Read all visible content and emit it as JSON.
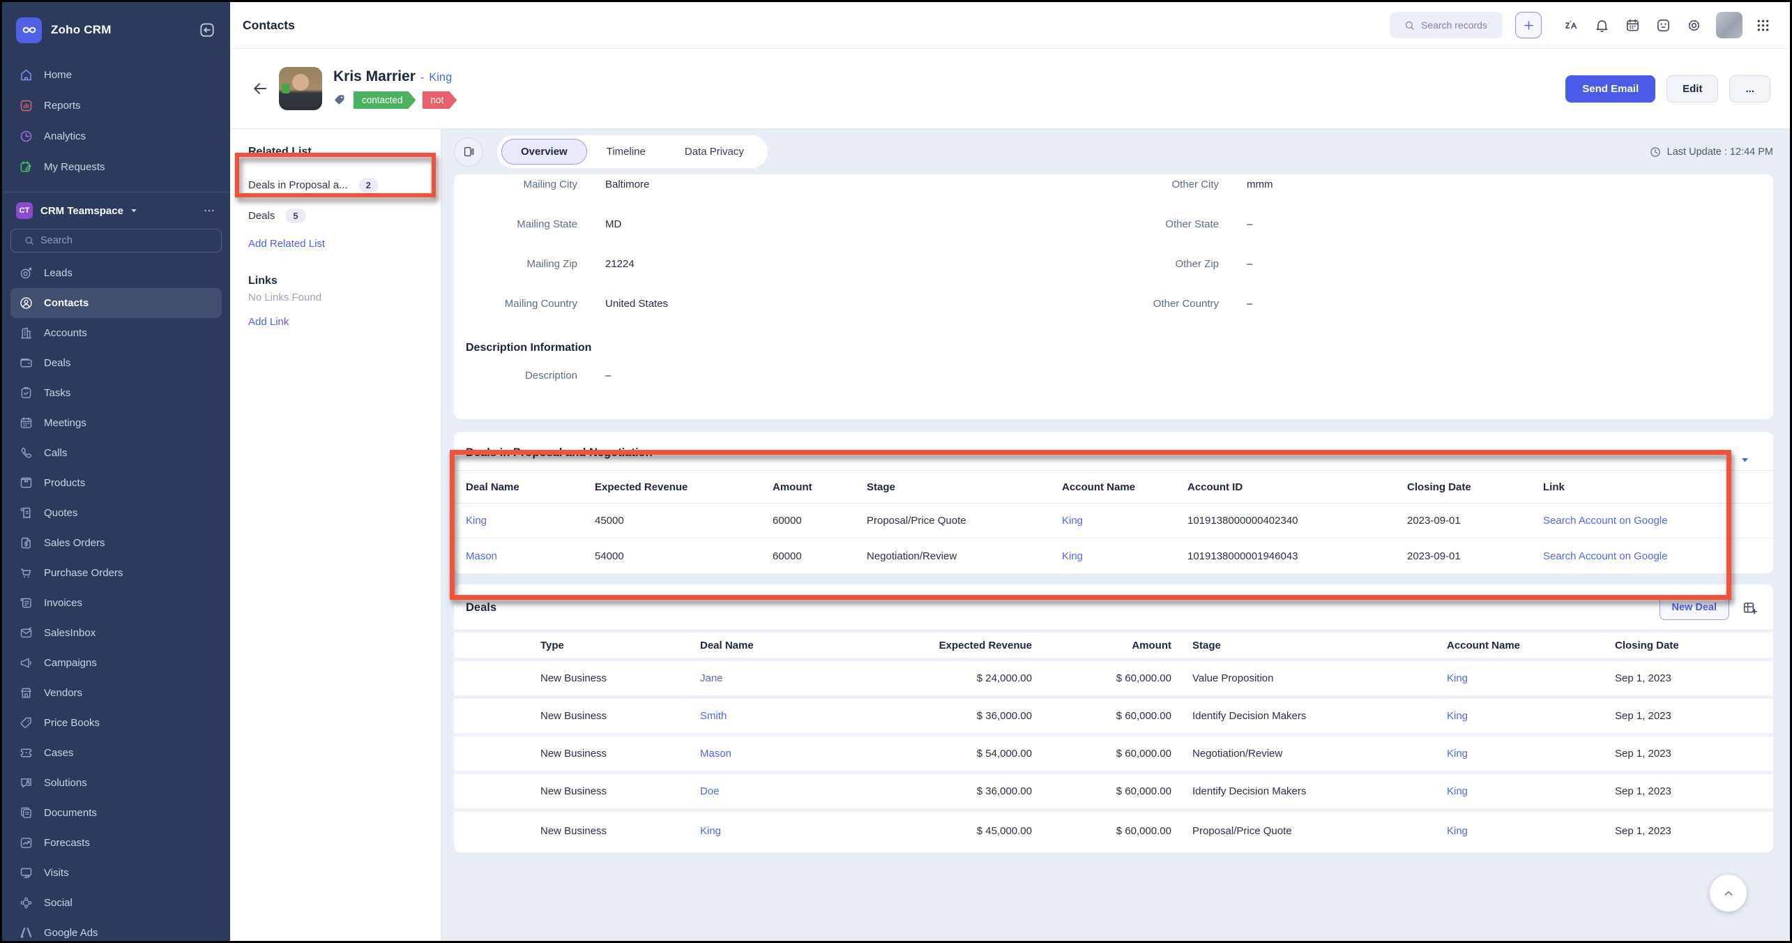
{
  "app": {
    "name": "Zoho CRM"
  },
  "colors": {
    "accent": "#4c5ae8",
    "annotation_red": "#f4513c",
    "tag_green": "#4db25f",
    "tag_red": "#e7616d",
    "sidebar_bg": "#2b3a5d",
    "link_blue": "#5065f2"
  },
  "sidebar": {
    "collapse_icon": "collapse",
    "top_items": [
      {
        "label": "Home",
        "icon": "home"
      },
      {
        "label": "Reports",
        "icon": "reports"
      },
      {
        "label": "Analytics",
        "icon": "analytics"
      },
      {
        "label": "My Requests",
        "icon": "requests"
      }
    ],
    "teamspace": {
      "initials": "CT",
      "label": "CRM Teamspace"
    },
    "search_placeholder": "Search",
    "modules": [
      {
        "label": "Leads",
        "icon": "leads"
      },
      {
        "label": "Contacts",
        "icon": "contacts",
        "selected": true
      },
      {
        "label": "Accounts",
        "icon": "accounts"
      },
      {
        "label": "Deals",
        "icon": "deals"
      },
      {
        "label": "Tasks",
        "icon": "tasks"
      },
      {
        "label": "Meetings",
        "icon": "meetings"
      },
      {
        "label": "Calls",
        "icon": "calls"
      },
      {
        "label": "Products",
        "icon": "products"
      },
      {
        "label": "Quotes",
        "icon": "quotes"
      },
      {
        "label": "Sales Orders",
        "icon": "sales-orders"
      },
      {
        "label": "Purchase Orders",
        "icon": "purchase-orders"
      },
      {
        "label": "Invoices",
        "icon": "invoices"
      },
      {
        "label": "SalesInbox",
        "icon": "salesinbox"
      },
      {
        "label": "Campaigns",
        "icon": "campaigns"
      },
      {
        "label": "Vendors",
        "icon": "vendors"
      },
      {
        "label": "Price Books",
        "icon": "price-books"
      },
      {
        "label": "Cases",
        "icon": "cases"
      },
      {
        "label": "Solutions",
        "icon": "solutions"
      },
      {
        "label": "Documents",
        "icon": "documents"
      },
      {
        "label": "Forecasts",
        "icon": "forecasts"
      },
      {
        "label": "Visits",
        "icon": "visits"
      },
      {
        "label": "Social",
        "icon": "social"
      },
      {
        "label": "Google Ads",
        "icon": "google-ads"
      }
    ]
  },
  "topbar": {
    "title": "Contacts",
    "search_placeholder": "Search records",
    "action_icons": [
      {
        "icon": "zia"
      },
      {
        "icon": "bell"
      },
      {
        "icon": "calendar"
      },
      {
        "icon": "feedback"
      },
      {
        "icon": "gear"
      }
    ]
  },
  "record": {
    "name": "Kris Marrier",
    "dash": "-",
    "account_link": "King",
    "tags": [
      {
        "label": "contacted",
        "green": true
      },
      {
        "label": "not",
        "red": true
      }
    ],
    "send_email": "Send Email",
    "edit": "Edit",
    "more": "...",
    "last_update": "Last Update : 12:44 PM"
  },
  "related_panel": {
    "related_title": "Related List",
    "items": [
      {
        "label": "Deals in Proposal a...",
        "count": "2"
      },
      {
        "label": "Deals",
        "count": "5"
      }
    ],
    "add_related": "Add Related List",
    "links_title": "Links",
    "no_links": "No Links Found",
    "add_link": "Add Link"
  },
  "tabs": [
    {
      "label": "Overview",
      "selected": true
    },
    {
      "label": "Timeline"
    },
    {
      "label": "Data Privacy"
    }
  ],
  "details": {
    "rows": [
      {
        "l_label": "Mailing City",
        "l_value": "Baltimore",
        "r_label": "Other City",
        "r_value": "mmm"
      },
      {
        "l_label": "Mailing State",
        "l_value": "MD",
        "r_label": "Other State",
        "r_value": "–"
      },
      {
        "l_label": "Mailing Zip",
        "l_value": "21224",
        "r_label": "Other Zip",
        "r_value": "–"
      },
      {
        "l_label": "Mailing Country",
        "l_value": "United States",
        "r_label": "Other Country",
        "r_value": "–"
      }
    ],
    "description_section": "Description Information",
    "description_label": "Description",
    "description_value": "–"
  },
  "proposal_table": {
    "title": "Deals in Proposal and Negotiation",
    "columns": [
      "Deal Name",
      "Expected Revenue",
      "Amount",
      "Stage",
      "Account Name",
      "Account ID",
      "Closing Date",
      "Link"
    ],
    "rows": [
      {
        "deal": "King",
        "expected": "45000",
        "amount": "60000",
        "stage": "Proposal/Price Quote",
        "account": "King",
        "account_id": "1019138000000402340",
        "closing": "2023-09-01",
        "link": "Search Account on Google"
      },
      {
        "deal": "Mason",
        "expected": "54000",
        "amount": "60000",
        "stage": "Negotiation/Review",
        "account": "King",
        "account_id": "1019138000001946043",
        "closing": "2023-09-01",
        "link": "Search Account on Google"
      }
    ]
  },
  "deals_table": {
    "title": "Deals",
    "new_deal_label": "New Deal",
    "columns": [
      "Type",
      "Deal Name",
      "Expected Revenue",
      "Amount",
      "Stage",
      "Account Name",
      "Closing Date"
    ],
    "rows": [
      {
        "type": "New Business",
        "deal": "Jane",
        "expected": "$ 24,000.00",
        "amount": "$ 60,000.00",
        "stage": "Value Proposition",
        "account": "King",
        "closing": "Sep 1, 2023"
      },
      {
        "type": "New Business",
        "deal": "Smith",
        "expected": "$ 36,000.00",
        "amount": "$ 60,000.00",
        "stage": "Identify Decision Makers",
        "account": "King",
        "closing": "Sep 1, 2023"
      },
      {
        "type": "New Business",
        "deal": "Mason",
        "expected": "$ 54,000.00",
        "amount": "$ 60,000.00",
        "stage": "Negotiation/Review",
        "account": "King",
        "closing": "Sep 1, 2023"
      },
      {
        "type": "New Business",
        "deal": "Doe",
        "expected": "$ 36,000.00",
        "amount": "$ 60,000.00",
        "stage": "Identify Decision Makers",
        "account": "King",
        "closing": "Sep 1, 2023"
      },
      {
        "type": "New Business",
        "deal": "King",
        "expected": "$ 45,000.00",
        "amount": "$ 60,000.00",
        "stage": "Proposal/Price Quote",
        "account": "King",
        "closing": "Sep 1, 2023"
      }
    ]
  }
}
